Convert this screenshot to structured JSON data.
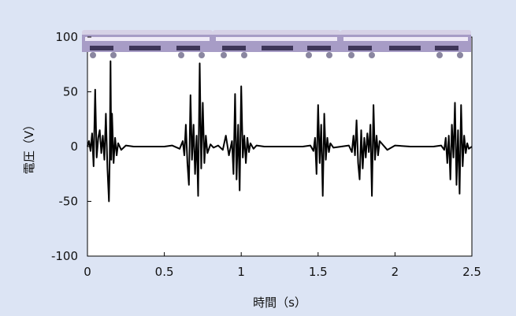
{
  "chart_data": {
    "type": "line",
    "title": "",
    "xlabel": "時間（s）",
    "ylabel": "電圧（V）",
    "xlim": [
      0,
      2.5
    ],
    "ylim": [
      -100,
      100
    ],
    "x_ticks": [
      "0",
      "0.5",
      "1",
      "1.5",
      "2",
      "2.5"
    ],
    "y_ticks": [
      "100",
      "50",
      "0",
      "-50",
      "-100"
    ],
    "grid": false,
    "legend": "none",
    "colors": {
      "background": "#dce4f4",
      "plot_area": "#ffffff",
      "signal": "#000000",
      "train_body": "#a79cc6",
      "train_roof": "#d6d1e6"
    },
    "decoration": "train-icon",
    "series": [
      {
        "values_x": [
          0.0,
          0.01,
          0.02,
          0.03,
          0.04,
          0.05,
          0.06,
          0.07,
          0.08,
          0.09,
          0.1,
          0.11,
          0.12,
          0.13,
          0.14,
          0.145,
          0.15,
          0.155,
          0.16,
          0.17,
          0.18,
          0.19,
          0.2,
          0.22,
          0.25,
          0.3,
          0.4,
          0.5,
          0.55,
          0.6,
          0.62,
          0.63,
          0.64,
          0.65,
          0.66,
          0.67,
          0.68,
          0.69,
          0.7,
          0.71,
          0.72,
          0.73,
          0.74,
          0.75,
          0.76,
          0.77,
          0.78,
          0.8,
          0.82,
          0.85,
          0.88,
          0.9,
          0.92,
          0.94,
          0.95,
          0.96,
          0.97,
          0.98,
          0.99,
          1.0,
          1.01,
          1.02,
          1.03,
          1.04,
          1.05,
          1.06,
          1.08,
          1.1,
          1.15,
          1.2,
          1.3,
          1.4,
          1.45,
          1.47,
          1.48,
          1.49,
          1.5,
          1.51,
          1.52,
          1.53,
          1.54,
          1.55,
          1.56,
          1.57,
          1.58,
          1.6,
          1.65,
          1.7,
          1.72,
          1.73,
          1.74,
          1.75,
          1.76,
          1.77,
          1.78,
          1.79,
          1.8,
          1.81,
          1.82,
          1.83,
          1.84,
          1.85,
          1.86,
          1.87,
          1.88,
          1.89,
          1.9,
          1.95,
          2.0,
          2.1,
          2.2,
          2.25,
          2.3,
          2.32,
          2.33,
          2.34,
          2.35,
          2.36,
          2.37,
          2.38,
          2.39,
          2.4,
          2.41,
          2.42,
          2.43,
          2.44,
          2.45,
          2.46,
          2.47,
          2.48,
          2.5
        ],
        "values_y": [
          0,
          5,
          -4,
          12,
          -18,
          52,
          -10,
          8,
          15,
          -6,
          10,
          -12,
          30,
          -20,
          -50,
          -10,
          78,
          -12,
          30,
          -15,
          8,
          -8,
          3,
          -3,
          1,
          0,
          0,
          0,
          1,
          -2,
          5,
          -8,
          20,
          -15,
          -35,
          47,
          -12,
          20,
          -25,
          10,
          -45,
          76,
          -20,
          40,
          -15,
          10,
          -6,
          2,
          -1,
          1,
          -3,
          10,
          -8,
          5,
          -25,
          48,
          -30,
          20,
          -40,
          55,
          -10,
          10,
          -15,
          8,
          -5,
          3,
          -2,
          1,
          0,
          0,
          0,
          0,
          1,
          -4,
          8,
          -25,
          38,
          -15,
          20,
          -45,
          30,
          -12,
          8,
          -5,
          3,
          -1,
          0,
          1,
          -5,
          10,
          -8,
          24,
          -15,
          -30,
          15,
          -20,
          8,
          -10,
          12,
          -5,
          20,
          -45,
          38,
          -12,
          10,
          -8,
          5,
          -3,
          1,
          0,
          0,
          0,
          1,
          -3,
          8,
          -15,
          10,
          -30,
          20,
          -10,
          40,
          -35,
          15,
          -43,
          38,
          -18,
          10,
          -6,
          3,
          -2,
          0
        ]
      }
    ]
  }
}
